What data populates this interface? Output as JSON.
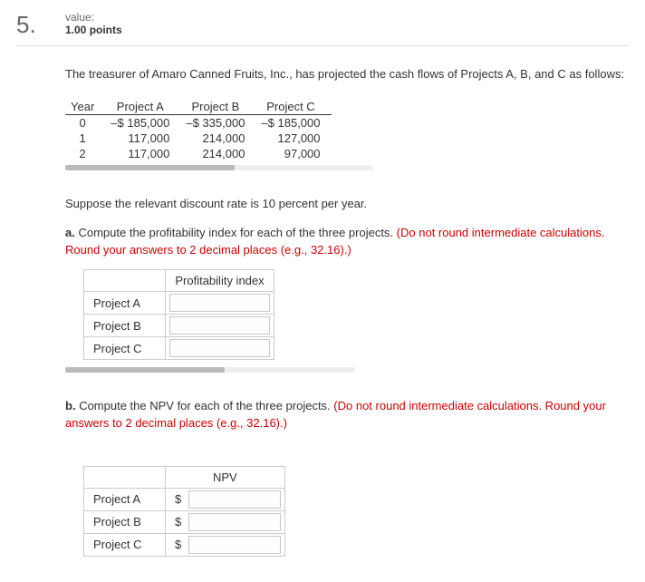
{
  "question": {
    "number": "5.",
    "value_label": "value:",
    "points": "1.00 points"
  },
  "intro": "The treasurer of Amaro Canned Fruits, Inc., has projected the cash flows of Projects A, B, and C as follows:",
  "cashflows": {
    "headers": [
      "Year",
      "Project A",
      "Project B",
      "Project C"
    ],
    "rows": [
      [
        "0",
        "–$ 185,000",
        "–$ 335,000",
        "–$ 185,000"
      ],
      [
        "1",
        "117,000",
        "214,000",
        "127,000"
      ],
      [
        "2",
        "117,000",
        "214,000",
        "97,000"
      ]
    ]
  },
  "discount_text": "Suppose the relevant discount rate is 10 percent per year.",
  "part_a": {
    "letter": "a.",
    "text": "Compute the profitability index for each of the three projects. ",
    "red": "(Do not round intermediate calculations. Round your answers to 2 decimal places (e.g., 32.16).)",
    "col_header": "Profitability index",
    "rows": [
      "Project A",
      "Project B",
      "Project C"
    ]
  },
  "part_b": {
    "letter": "b.",
    "text": "Compute the NPV for each of the three projects. ",
    "red": "(Do not round intermediate calculations. Round your answers to 2 decimal places (e.g., 32.16).)",
    "col_header": "NPV",
    "currency": "$",
    "rows": [
      "Project A",
      "Project B",
      "Project C"
    ]
  }
}
